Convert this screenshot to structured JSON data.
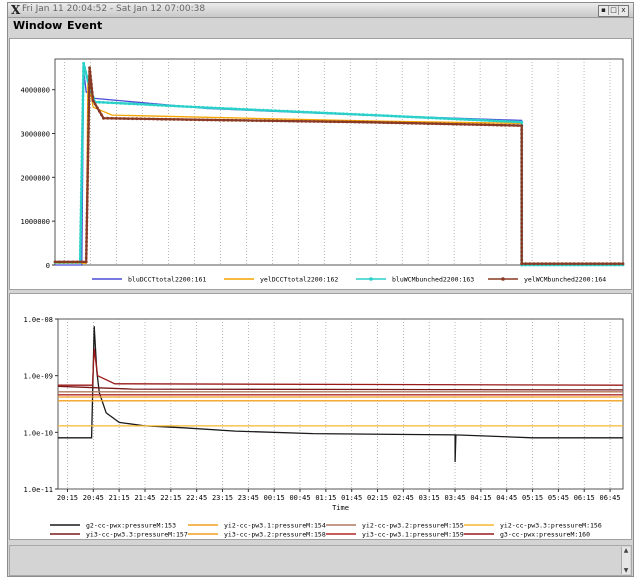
{
  "window": {
    "title": "Fri Jan 11 20:04:52 - Sat Jan 12 07:00:38",
    "buttons": [
      "▪",
      "□",
      "x"
    ]
  },
  "menubar": {
    "items": [
      "Window",
      "Event"
    ]
  },
  "colors": {
    "blu_dcct": "#4a4cd6",
    "yel_dcct": "#f5a400",
    "blu_wcm": "#2bd1c9",
    "yel_wcm": "#8a3a24"
  },
  "status": {
    "text": ""
  },
  "chart_data": [
    {
      "type": "line",
      "title": "",
      "xlabel": "",
      "ylabel": "",
      "ylim": [
        0,
        4700000
      ],
      "yticks": [
        {
          "value": 0,
          "label": "0"
        },
        {
          "value": 1000000,
          "label": "1000000"
        },
        {
          "value": 2000000,
          "label": "2000000"
        },
        {
          "value": 3000000,
          "label": "3000000"
        },
        {
          "value": 4000000,
          "label": "4000000"
        }
      ],
      "x_range": [
        "20:04",
        "07:00"
      ],
      "grid": "vertical dotted",
      "legend_position": "bottom",
      "series": [
        {
          "name": "bluDCCTtotal2200:161",
          "color": "#4a4cd6",
          "marker": "none",
          "points": [
            [
              "20:04",
              0
            ],
            [
              "20:35",
              0
            ],
            [
              "20:37",
              4450000
            ],
            [
              "20:40",
              3950000
            ],
            [
              "20:50",
              3800000
            ],
            [
              "23:00",
              3570000
            ],
            [
              "02:00",
              3420000
            ],
            [
              "05:03",
              3300000
            ],
            [
              "05:03",
              0
            ],
            [
              "07:00",
              0
            ]
          ]
        },
        {
          "name": "yelDCCTtotal2200:162",
          "color": "#f5a400",
          "marker": "none",
          "points": [
            [
              "20:04",
              40000
            ],
            [
              "20:40",
              40000
            ],
            [
              "20:42",
              4300000
            ],
            [
              "20:48",
              3600000
            ],
            [
              "21:10",
              3420000
            ],
            [
              "23:00",
              3370000
            ],
            [
              "02:00",
              3290000
            ],
            [
              "05:03",
              3230000
            ],
            [
              "05:03",
              0
            ],
            [
              "07:00",
              0
            ]
          ]
        },
        {
          "name": "bluWCMbunched2200:163",
          "color": "#2bd1c9",
          "marker": "dot",
          "points": [
            [
              "20:04",
              60000
            ],
            [
              "20:33",
              60000
            ],
            [
              "20:37",
              4600000
            ],
            [
              "20:42",
              4200000
            ],
            [
              "20:50",
              3720000
            ],
            [
              "21:30",
              3680000
            ],
            [
              "23:00",
              3590000
            ],
            [
              "02:00",
              3430000
            ],
            [
              "05:03",
              3260000
            ],
            [
              "05:03",
              0
            ],
            [
              "07:00",
              0
            ]
          ]
        },
        {
          "name": "yelWCMbunched2200:164",
          "color": "#8a3a24",
          "marker": "dot",
          "points": [
            [
              "20:04",
              70000
            ],
            [
              "20:40",
              70000
            ],
            [
              "20:44",
              4500000
            ],
            [
              "20:48",
              3750000
            ],
            [
              "21:00",
              3350000
            ],
            [
              "23:00",
              3310000
            ],
            [
              "02:00",
              3260000
            ],
            [
              "05:03",
              3180000
            ],
            [
              "05:03",
              30000
            ],
            [
              "07:00",
              30000
            ]
          ]
        }
      ]
    },
    {
      "type": "line",
      "title": "",
      "xlabel": "Time",
      "ylabel": "",
      "yscale": "log",
      "ylim": [
        1e-11,
        1e-08
      ],
      "yticks": [
        {
          "value": 1e-08,
          "label": "1.0e-08"
        },
        {
          "value": 1e-09,
          "label": "1.0e-09"
        },
        {
          "value": 1e-10,
          "label": "1.0e-10"
        },
        {
          "value": 1e-11,
          "label": "1.0e-11"
        }
      ],
      "xticks": [
        "20:15",
        "20:45",
        "21:15",
        "21:45",
        "22:15",
        "22:45",
        "23:15",
        "23:45",
        "00:15",
        "00:45",
        "01:15",
        "01:45",
        "02:15",
        "02:45",
        "03:15",
        "03:45",
        "04:15",
        "04:45",
        "05:15",
        "05:45",
        "06:15",
        "06:45"
      ],
      "x_range": [
        "20:04",
        "07:00"
      ],
      "grid": "vertical dotted",
      "legend_position": "bottom",
      "series": [
        {
          "name": "g2-cc-pwx:pressureM:153",
          "color": "#1a1a1a",
          "points": [
            [
              "20:04",
              8e-11
            ],
            [
              "20:43",
              8e-11
            ],
            [
              "20:46",
              7.5e-09
            ],
            [
              "20:49",
              1.2e-09
            ],
            [
              "20:52",
              5e-10
            ],
            [
              "21:00",
              2.2e-10
            ],
            [
              "21:15",
              1.5e-10
            ],
            [
              "21:45",
              1.3e-10
            ],
            [
              "22:30",
              1.2e-10
            ],
            [
              "23:30",
              1.05e-10
            ],
            [
              "01:00",
              9.5e-11
            ],
            [
              "03:45",
              9e-11
            ],
            [
              "03:45",
              3e-11
            ],
            [
              "03:46",
              9e-11
            ],
            [
              "05:15",
              8e-11
            ],
            [
              "07:00",
              8e-11
            ]
          ]
        },
        {
          "name": "yi2-cc-pw3.1:pressureM:154",
          "color": "#f0a020",
          "points": [
            [
              "20:04",
              4.2e-10
            ],
            [
              "07:00",
              4.2e-10
            ]
          ]
        },
        {
          "name": "yi2-cc-pw3.2:pressureM:155",
          "color": "#b07a60",
          "points": [
            [
              "20:04",
              5.2e-10
            ],
            [
              "07:00",
              5.2e-10
            ]
          ]
        },
        {
          "name": "yi2-cc-pw3.3:pressureM:156",
          "color": "#f5b830",
          "points": [
            [
              "20:04",
              1.3e-10
            ],
            [
              "07:00",
              1.3e-10
            ]
          ]
        },
        {
          "name": "yi3-cc-pw3.3:pressureM:157",
          "color": "#7a1818",
          "points": [
            [
              "20:04",
              6.5e-10
            ],
            [
              "21:30",
              5.8e-10
            ],
            [
              "07:00",
              5.6e-10
            ]
          ]
        },
        {
          "name": "yi3-cc-pw3.2:pressureM:158",
          "color": "#f0a020",
          "points": [
            [
              "20:04",
              3.6e-10
            ],
            [
              "07:00",
              3.6e-10
            ]
          ]
        },
        {
          "name": "yi3-cc-pw3.1:pressureM:159",
          "color": "#b02828",
          "points": [
            [
              "20:04",
              4.6e-10
            ],
            [
              "07:00",
              4.6e-10
            ]
          ]
        },
        {
          "name": "g3-cc-pwx:pressureM:160",
          "color": "#9a1a1a",
          "points": [
            [
              "20:04",
              6.8e-10
            ],
            [
              "20:44",
              6.8e-10
            ],
            [
              "20:46",
              3e-09
            ],
            [
              "20:50",
              1e-09
            ],
            [
              "21:10",
              7.2e-10
            ],
            [
              "07:00",
              6.8e-10
            ]
          ]
        }
      ]
    }
  ]
}
